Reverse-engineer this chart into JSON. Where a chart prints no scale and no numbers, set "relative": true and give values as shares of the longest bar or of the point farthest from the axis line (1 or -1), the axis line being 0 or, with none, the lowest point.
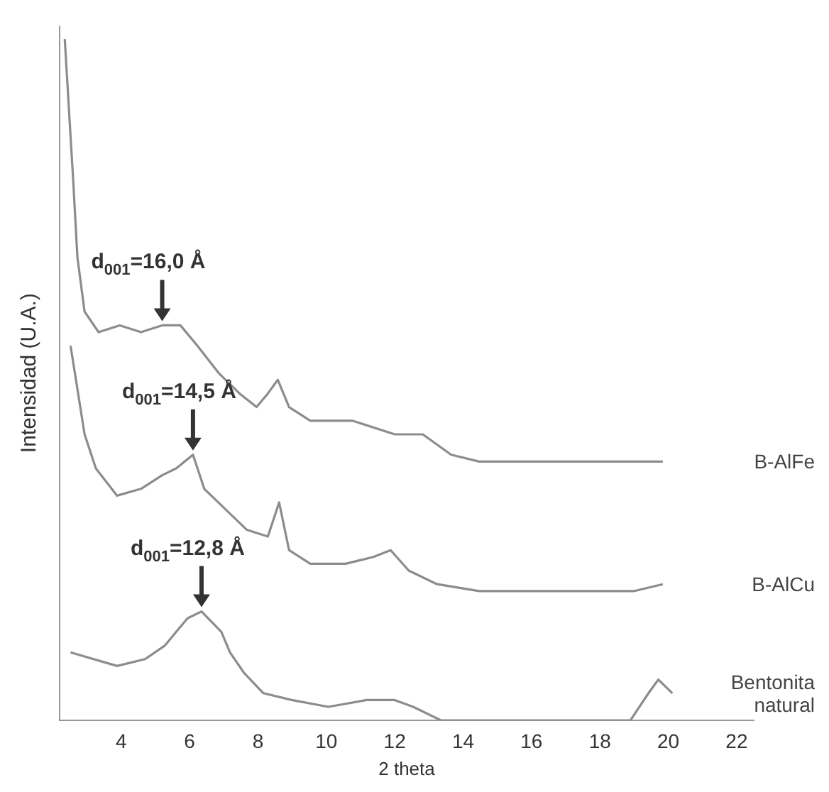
{
  "chart_data": {
    "type": "line",
    "relative": true,
    "xlabel": "2 theta",
    "ylabel": "Intensidad (U.A.)",
    "xlim": [
      2.2,
      22.5
    ],
    "xticks": [
      4,
      6,
      8,
      10,
      12,
      14,
      16,
      18,
      20,
      22
    ],
    "grid": false,
    "legend": false,
    "marker": "none",
    "line_style": "solid",
    "annotations": [
      {
        "text": "d$_{001}$=16,0 Å",
        "x": 5.2,
        "y": 0.58
      },
      {
        "text": "d$_{001}$=14,5 Å",
        "x": 6.1,
        "y": 0.39
      },
      {
        "text": "d$_{001}$=12,8 Å",
        "x": 6.35,
        "y": 0.16
      }
    ],
    "series": [
      {
        "name": "B-AlFe",
        "color": "#8c8c8c",
        "x": [
          2.35,
          2.6,
          2.72,
          2.93,
          3.34,
          3.96,
          4.58,
          5.2,
          5.73,
          6.23,
          6.85,
          7.46,
          7.96,
          8.29,
          8.58,
          8.91,
          9.53,
          10.76,
          12.0,
          12.82,
          13.65,
          14.47,
          15.71,
          16.95,
          18.19,
          19.01,
          19.84
        ],
        "values": [
          1.0,
          0.79,
          0.68,
          0.6,
          0.57,
          0.58,
          0.57,
          0.58,
          0.58,
          0.55,
          0.51,
          0.48,
          0.46,
          0.48,
          0.5,
          0.46,
          0.44,
          0.44,
          0.42,
          0.42,
          0.39,
          0.38,
          0.38,
          0.38,
          0.38,
          0.38,
          0.38
        ]
      },
      {
        "name": "B-AlCu",
        "color": "#8c8c8c",
        "x": [
          2.52,
          2.93,
          3.26,
          3.88,
          4.58,
          5.2,
          5.61,
          6.1,
          6.43,
          7.05,
          7.67,
          8.29,
          8.62,
          8.91,
          9.53,
          10.56,
          11.38,
          11.88,
          12.41,
          13.24,
          14.47,
          16.12,
          17.77,
          19.01,
          19.84
        ],
        "values": [
          0.55,
          0.42,
          0.37,
          0.33,
          0.34,
          0.36,
          0.37,
          0.39,
          0.34,
          0.31,
          0.28,
          0.27,
          0.32,
          0.25,
          0.23,
          0.23,
          0.24,
          0.25,
          0.22,
          0.2,
          0.19,
          0.19,
          0.19,
          0.19,
          0.2
        ]
      },
      {
        "name": "Bentonita natural",
        "color": "#8c8c8c",
        "x": [
          2.52,
          3.88,
          4.7,
          5.28,
          5.94,
          6.35,
          6.93,
          7.18,
          7.59,
          8.16,
          8.99,
          10.06,
          11.18,
          12.0,
          12.54,
          13.36,
          16.12,
          18.89,
          19.42,
          19.71,
          20.12
        ],
        "values": [
          0.1,
          0.08,
          0.09,
          0.11,
          0.15,
          0.16,
          0.13,
          0.1,
          0.07,
          0.04,
          0.03,
          0.02,
          0.03,
          0.03,
          0.02,
          0.0,
          0.0,
          0.0,
          0.04,
          0.06,
          0.04
        ]
      }
    ]
  }
}
